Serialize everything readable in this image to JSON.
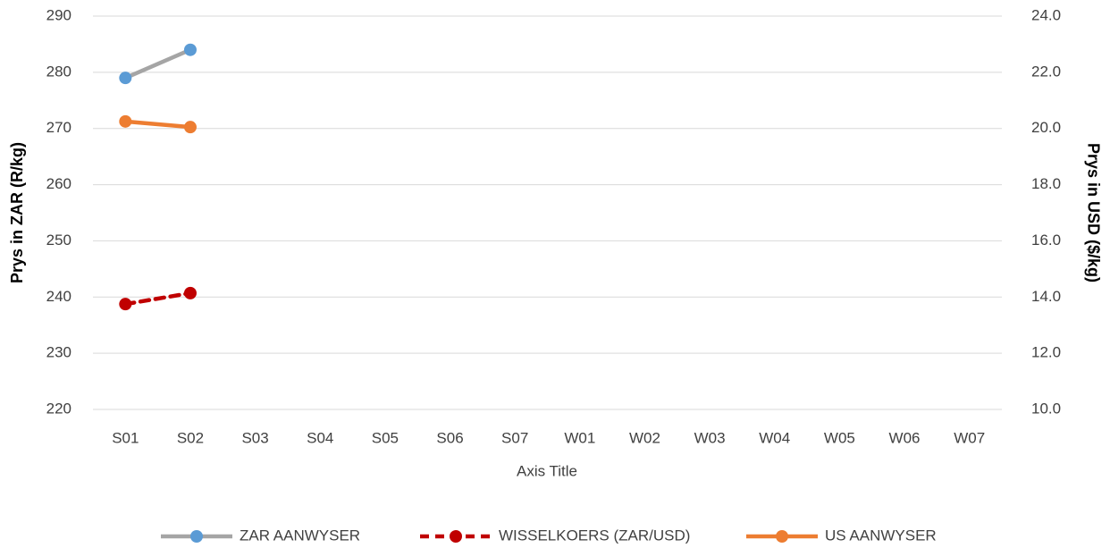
{
  "chart_data": {
    "type": "line",
    "categories": [
      "S01",
      "S02",
      "S03",
      "S04",
      "S05",
      "S06",
      "S07",
      "W01",
      "W02",
      "W03",
      "W04",
      "W05",
      "W06",
      "W07"
    ],
    "series": [
      {
        "name": "ZAR AANWYSER",
        "color": "#a5a5a5",
        "marker_color": "#5b9bd5",
        "values": [
          279,
          284,
          null,
          null,
          null,
          null,
          null,
          null,
          null,
          null,
          null,
          null,
          null,
          null
        ]
      },
      {
        "name": "WISSELKOERS (ZAR/USD)",
        "color": "#c00000",
        "marker_color": "#c00000",
        "dashed": true,
        "axis": "y2",
        "values": [
          13.75,
          14.14,
          null,
          null,
          null,
          null,
          null,
          null,
          null,
          null,
          null,
          null,
          null,
          null
        ]
      },
      {
        "name": "US AANWYSER",
        "color": "#ed7d31",
        "marker_color": "#ed7d31",
        "axis": "y2",
        "values": [
          20.25,
          20.05,
          null,
          null,
          null,
          null,
          null,
          null,
          null,
          null,
          null,
          null,
          null,
          null
        ]
      }
    ],
    "ylim": [
      220,
      290
    ],
    "yticks": [
      220,
      230,
      240,
      250,
      260,
      270,
      280,
      290
    ],
    "y2lim": [
      10,
      24
    ],
    "y2ticks": [
      {
        "value": 10,
        "label": "10.0"
      },
      {
        "value": 12,
        "label": "12.0"
      },
      {
        "value": 14,
        "label": "14.0"
      },
      {
        "value": 16,
        "label": "16.0"
      },
      {
        "value": 18,
        "label": "18.0"
      },
      {
        "value": 20,
        "label": "20.0"
      },
      {
        "value": 22,
        "label": "22.0"
      },
      {
        "value": 24,
        "label": "24.0"
      }
    ],
    "ylabel": "Prys in ZAR (R/kg)",
    "y2label": "Prys in USD ($/kg)",
    "xlabel": "Axis Title",
    "grid": true,
    "legend": "bottom"
  }
}
